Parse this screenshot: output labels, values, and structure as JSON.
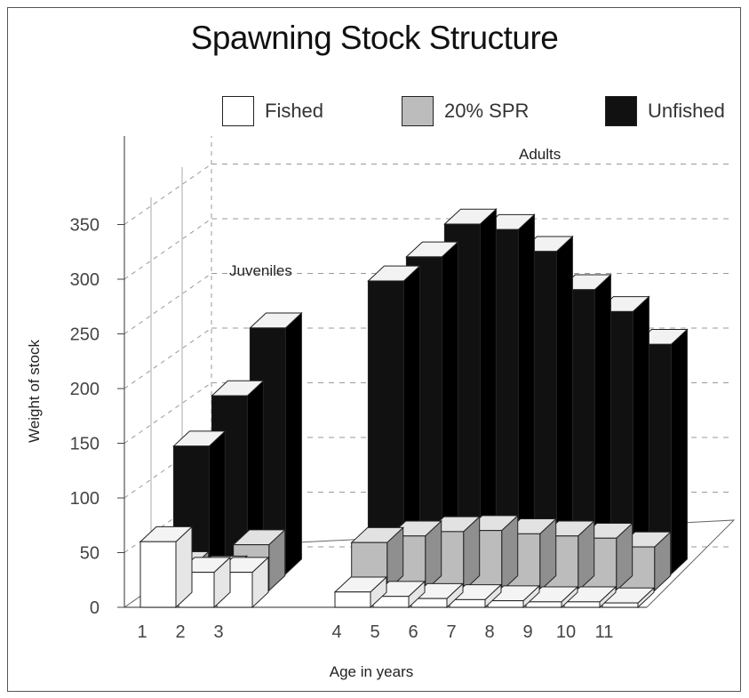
{
  "chart_data": {
    "type": "bar",
    "title": "Spawning Stock Structure",
    "xlabel": "Age in years",
    "ylabel": "Weight of stock",
    "ylim": [
      0,
      350
    ],
    "yticks": [
      "0",
      "50",
      "100",
      "150",
      "200",
      "250",
      "300",
      "350"
    ],
    "categories": [
      "1",
      "2",
      "3",
      "4",
      "5",
      "6",
      "7",
      "8",
      "9",
      "10",
      "11"
    ],
    "series": [
      {
        "name": "Fished",
        "color": "#ffffff",
        "values": [
          60,
          32,
          32,
          14,
          10,
          8,
          7,
          6,
          5,
          5,
          4
        ]
      },
      {
        "name": "20% SPR",
        "color": "#bcbcbc",
        "values": [
          22,
          18,
          42,
          44,
          50,
          54,
          55,
          52,
          50,
          48,
          40
        ]
      },
      {
        "name": "Unfished",
        "color": "#111111",
        "values": [
          117,
          163,
          225,
          268,
          290,
          320,
          315,
          295,
          260,
          240,
          210
        ]
      }
    ],
    "annotations": [
      {
        "text": "Juveniles",
        "near": "3"
      },
      {
        "text": "Adults",
        "near": "7"
      }
    ],
    "legend_position": "top",
    "grid": true
  }
}
